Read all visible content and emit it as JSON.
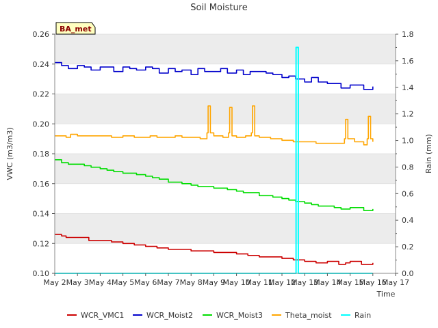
{
  "chart_data": {
    "type": "line",
    "title": "Soil Moisture",
    "station_label": "BA_met",
    "xlabel": "Time",
    "ylabel": "VWC (m3/m3)",
    "y2label": "Rain (mm)",
    "xlim": [
      2,
      17
    ],
    "ylim": [
      0.1,
      0.26
    ],
    "y2lim": [
      0.0,
      1.8
    ],
    "x_ticks": [
      2,
      3,
      4,
      5,
      6,
      7,
      8,
      9,
      10,
      11,
      12,
      13,
      14,
      15,
      16,
      17
    ],
    "x_tick_labels": [
      "May 2",
      "May 3",
      "May 4",
      "May 5",
      "May 6",
      "May 7",
      "May 8",
      "May 9",
      "May 10",
      "May 11",
      "May 12",
      "May 13",
      "May 14",
      "May 15",
      "May 16",
      "May 17"
    ],
    "y_ticks": [
      0.1,
      0.12,
      0.14,
      0.16,
      0.18,
      0.2,
      0.22,
      0.24,
      0.26
    ],
    "y_tick_labels": [
      "0.10",
      "0.12",
      "0.14",
      "0.16",
      "0.18",
      "0.20",
      "0.22",
      "0.24",
      "0.26"
    ],
    "y2_ticks": [
      0.0,
      0.2,
      0.4,
      0.6,
      0.8,
      1.0,
      1.2,
      1.4,
      1.6,
      1.8
    ],
    "y2_tick_labels": [
      "0.0",
      "0.2",
      "0.4",
      "0.6",
      "0.8",
      "1.0",
      "1.2",
      "1.4",
      "1.6",
      "1.8"
    ],
    "grid": "horizontal bands",
    "legend_position": "bottom",
    "series": [
      {
        "name": "WCR_VMC1",
        "color": "#cc0000",
        "axis": "left",
        "x": [
          2.0,
          2.3,
          2.5,
          3.0,
          3.5,
          4.0,
          4.5,
          5.0,
          5.5,
          6.0,
          6.5,
          7.0,
          7.5,
          8.0,
          8.5,
          9.0,
          9.5,
          10.0,
          10.5,
          11.0,
          11.5,
          12.0,
          12.5,
          13.0,
          13.5,
          14.0,
          14.5,
          14.8,
          15.0,
          15.5,
          16.0
        ],
        "y": [
          0.126,
          0.125,
          0.124,
          0.124,
          0.122,
          0.122,
          0.121,
          0.12,
          0.119,
          0.118,
          0.117,
          0.116,
          0.116,
          0.115,
          0.115,
          0.114,
          0.114,
          0.113,
          0.112,
          0.111,
          0.111,
          0.11,
          0.109,
          0.108,
          0.107,
          0.108,
          0.106,
          0.107,
          0.108,
          0.106,
          0.107
        ]
      },
      {
        "name": "WCR_Moist2",
        "color": "#0000cc",
        "axis": "left",
        "x": [
          2.0,
          2.3,
          2.6,
          3.0,
          3.3,
          3.6,
          4.0,
          4.3,
          4.6,
          5.0,
          5.3,
          5.6,
          6.0,
          6.3,
          6.6,
          7.0,
          7.3,
          7.6,
          8.0,
          8.3,
          8.6,
          9.0,
          9.3,
          9.6,
          10.0,
          10.3,
          10.6,
          11.0,
          11.3,
          11.6,
          12.0,
          12.3,
          12.6,
          13.0,
          13.3,
          13.6,
          14.0,
          14.3,
          14.6,
          15.0,
          15.3,
          15.6,
          16.0
        ],
        "y": [
          0.241,
          0.239,
          0.237,
          0.239,
          0.238,
          0.236,
          0.238,
          0.238,
          0.235,
          0.238,
          0.237,
          0.236,
          0.238,
          0.237,
          0.234,
          0.237,
          0.235,
          0.236,
          0.233,
          0.237,
          0.235,
          0.235,
          0.237,
          0.234,
          0.236,
          0.233,
          0.235,
          0.235,
          0.234,
          0.233,
          0.231,
          0.232,
          0.23,
          0.228,
          0.231,
          0.228,
          0.227,
          0.227,
          0.224,
          0.226,
          0.226,
          0.223,
          0.225
        ]
      },
      {
        "name": "WCR_Moist3",
        "color": "#00dd00",
        "axis": "left",
        "x": [
          2.0,
          2.3,
          2.6,
          3.0,
          3.3,
          3.6,
          4.0,
          4.3,
          4.6,
          5.0,
          5.3,
          5.6,
          6.0,
          6.3,
          6.6,
          7.0,
          7.3,
          7.6,
          8.0,
          8.3,
          8.6,
          9.0,
          9.3,
          9.6,
          10.0,
          10.3,
          10.6,
          11.0,
          11.3,
          11.6,
          12.0,
          12.3,
          12.6,
          13.0,
          13.3,
          13.6,
          14.0,
          14.3,
          14.6,
          15.0,
          15.3,
          15.6,
          16.0
        ],
        "y": [
          0.176,
          0.174,
          0.173,
          0.173,
          0.172,
          0.171,
          0.17,
          0.169,
          0.168,
          0.167,
          0.167,
          0.166,
          0.165,
          0.164,
          0.163,
          0.161,
          0.161,
          0.16,
          0.159,
          0.158,
          0.158,
          0.157,
          0.157,
          0.156,
          0.155,
          0.154,
          0.154,
          0.152,
          0.152,
          0.151,
          0.15,
          0.149,
          0.148,
          0.147,
          0.146,
          0.145,
          0.145,
          0.144,
          0.143,
          0.144,
          0.144,
          0.142,
          0.143
        ]
      },
      {
        "name": "Theta_moist",
        "color": "#ffa500",
        "axis": "left",
        "x": [
          2.0,
          2.3,
          2.5,
          2.7,
          3.0,
          3.5,
          4.0,
          4.5,
          5.0,
          5.5,
          6.0,
          6.2,
          6.5,
          7.0,
          7.3,
          7.6,
          8.0,
          8.4,
          8.7,
          8.75,
          8.85,
          9.0,
          9.4,
          9.65,
          9.7,
          9.8,
          10.0,
          10.4,
          10.65,
          10.7,
          10.8,
          11.0,
          11.5,
          12.0,
          12.5,
          13.0,
          13.5,
          14.0,
          14.5,
          14.75,
          14.8,
          14.9,
          15.2,
          15.6,
          15.75,
          15.8,
          15.9,
          16.0
        ],
        "y": [
          0.192,
          0.192,
          0.191,
          0.193,
          0.192,
          0.192,
          0.192,
          0.191,
          0.192,
          0.191,
          0.191,
          0.192,
          0.191,
          0.191,
          0.192,
          0.191,
          0.191,
          0.19,
          0.194,
          0.212,
          0.194,
          0.192,
          0.191,
          0.194,
          0.211,
          0.192,
          0.191,
          0.192,
          0.194,
          0.212,
          0.192,
          0.191,
          0.19,
          0.189,
          0.188,
          0.188,
          0.187,
          0.187,
          0.187,
          0.19,
          0.203,
          0.19,
          0.188,
          0.186,
          0.19,
          0.205,
          0.19,
          0.188
        ]
      },
      {
        "name": "Rain",
        "color": "#00ffff",
        "axis": "right",
        "x": [
          2.0,
          12.6,
          12.62,
          12.7,
          12.72,
          16.0
        ],
        "y": [
          0.0,
          0.0,
          1.7,
          1.7,
          0.0,
          0.0
        ]
      }
    ]
  }
}
